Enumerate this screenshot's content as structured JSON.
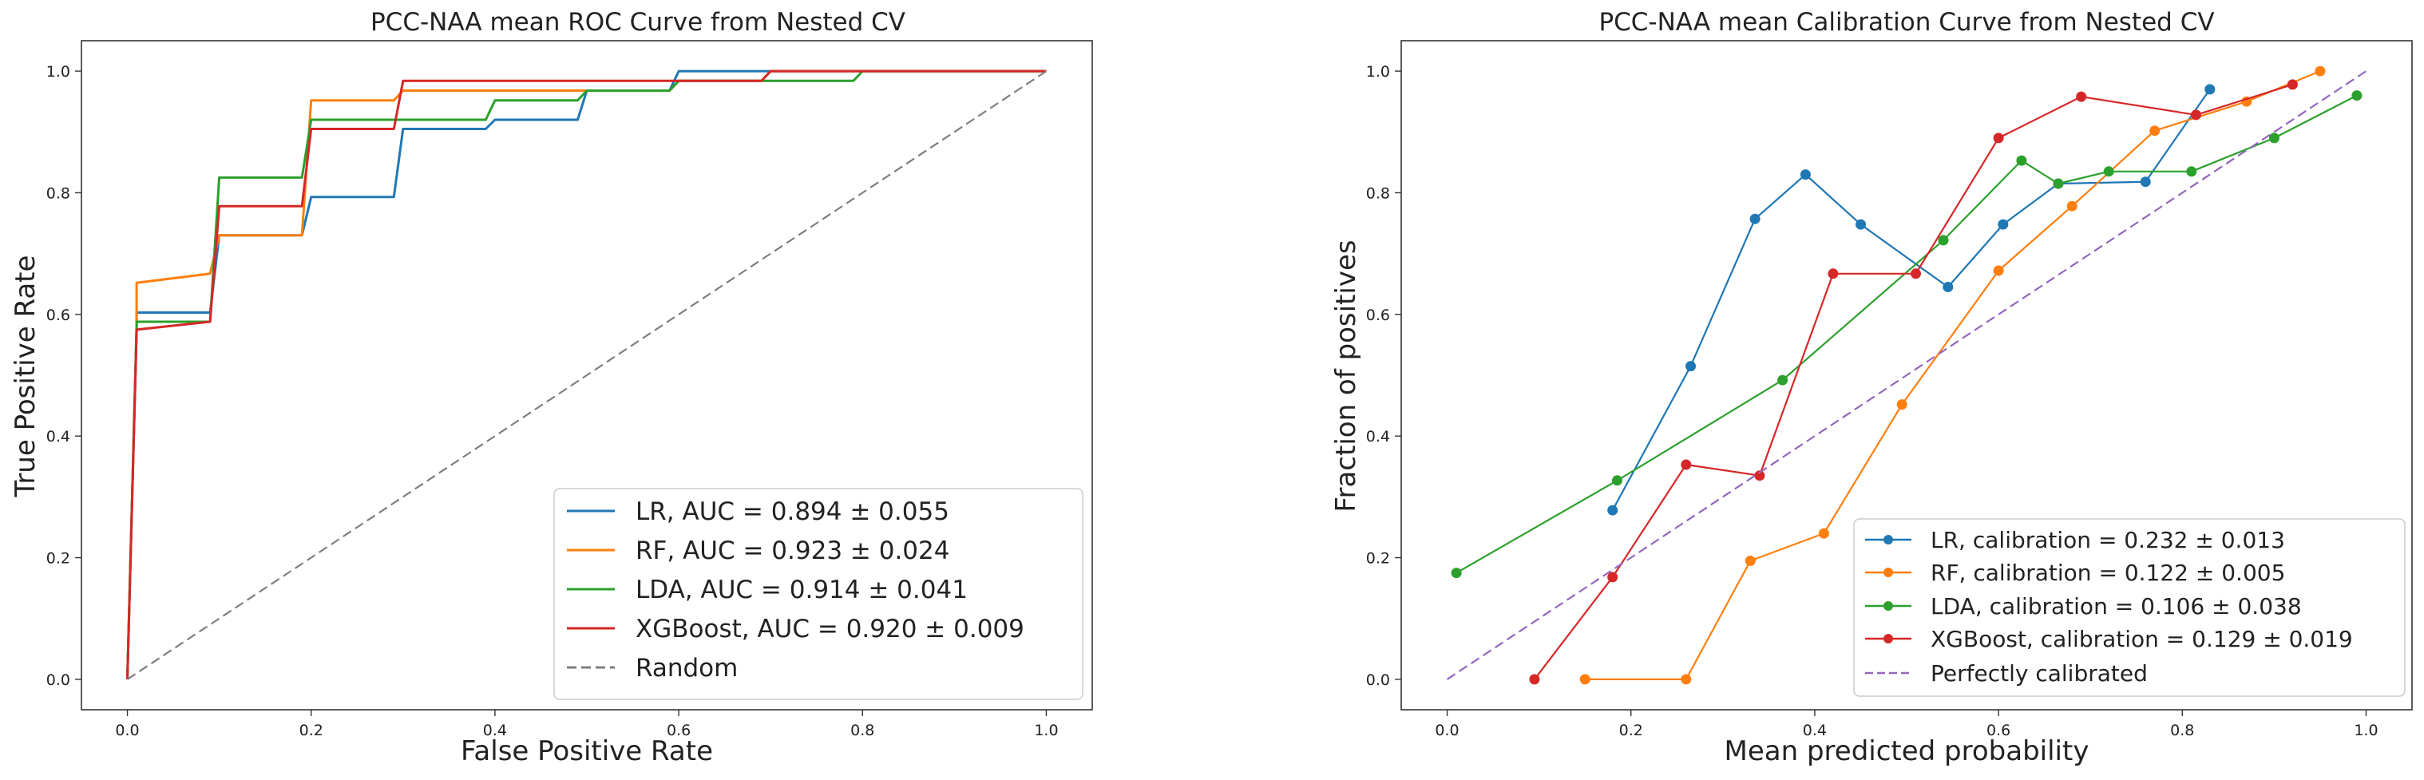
{
  "chart_data": [
    {
      "type": "line",
      "title": "PCC-NAA mean ROC Curve from Nested CV",
      "xlabel": "False Positive Rate",
      "ylabel": "True Positive Rate",
      "xlim": [
        -0.05,
        1.05
      ],
      "ylim": [
        -0.05,
        1.05
      ],
      "xticks": [
        0.0,
        0.2,
        0.4,
        0.6,
        0.8,
        1.0
      ],
      "yticks": [
        0.0,
        0.2,
        0.4,
        0.6,
        0.8,
        1.0
      ],
      "tick_labels": [
        "0.0",
        "0.2",
        "0.4",
        "0.6",
        "0.8",
        "1.0"
      ],
      "legend_position": "lower-right",
      "series": [
        {
          "name": "LR",
          "label": "LR, AUC = 0.894 ± 0.055",
          "color": "#1f77b4",
          "x": [
            0.0,
            0.01,
            0.01,
            0.09,
            0.1,
            0.19,
            0.2,
            0.29,
            0.3,
            0.39,
            0.4,
            0.49,
            0.5,
            0.59,
            0.6,
            0.69,
            0.7,
            1.0
          ],
          "y": [
            0.0,
            0.58,
            0.603,
            0.603,
            0.73,
            0.73,
            0.793,
            0.793,
            0.905,
            0.905,
            0.92,
            0.92,
            0.968,
            0.968,
            1.0,
            1.0,
            1.0,
            1.0
          ]
        },
        {
          "name": "RF",
          "label": "RF, AUC = 0.923 ± 0.024",
          "color": "#ff7f0e",
          "x": [
            0.0,
            0.01,
            0.01,
            0.09,
            0.1,
            0.19,
            0.2,
            0.29,
            0.3,
            0.49,
            0.5,
            0.59,
            0.6,
            0.69,
            0.7,
            1.0
          ],
          "y": [
            0.0,
            0.58,
            0.652,
            0.667,
            0.73,
            0.73,
            0.952,
            0.952,
            0.968,
            0.968,
            0.968,
            0.968,
            0.984,
            0.984,
            1.0,
            1.0
          ]
        },
        {
          "name": "LDA",
          "label": "LDA, AUC = 0.914 ± 0.041",
          "color": "#2ca02c",
          "x": [
            0.0,
            0.01,
            0.01,
            0.09,
            0.1,
            0.19,
            0.2,
            0.29,
            0.3,
            0.39,
            0.4,
            0.49,
            0.5,
            0.59,
            0.6,
            0.79,
            0.8,
            1.0
          ],
          "y": [
            0.0,
            0.58,
            0.588,
            0.588,
            0.825,
            0.825,
            0.92,
            0.92,
            0.92,
            0.92,
            0.952,
            0.952,
            0.968,
            0.968,
            0.984,
            0.984,
            1.0,
            1.0
          ]
        },
        {
          "name": "XGBoost",
          "label": "XGBoost, AUC = 0.920 ± 0.009",
          "color": "#d62728",
          "x": [
            0.0,
            0.01,
            0.01,
            0.09,
            0.1,
            0.19,
            0.2,
            0.29,
            0.3,
            0.59,
            0.6,
            0.69,
            0.7,
            1.0
          ],
          "y": [
            0.0,
            0.57,
            0.575,
            0.588,
            0.778,
            0.778,
            0.905,
            0.905,
            0.984,
            0.984,
            0.984,
            0.984,
            1.0,
            1.0
          ]
        },
        {
          "name": "Random",
          "label": "Random",
          "color": "#7f7f7f",
          "dashed": true,
          "x": [
            0.0,
            1.0
          ],
          "y": [
            0.0,
            1.0
          ]
        }
      ]
    },
    {
      "type": "line",
      "title": "PCC-NAA mean Calibration Curve from Nested CV",
      "xlabel": "Mean predicted probability",
      "ylabel": "Fraction of positives",
      "xlim": [
        -0.05,
        1.05
      ],
      "ylim": [
        -0.05,
        1.05
      ],
      "xticks": [
        0.0,
        0.2,
        0.4,
        0.6,
        0.8,
        1.0
      ],
      "yticks": [
        0.0,
        0.2,
        0.4,
        0.6,
        0.8,
        1.0
      ],
      "tick_labels": [
        "0.0",
        "0.2",
        "0.4",
        "0.6",
        "0.8",
        "1.0"
      ],
      "legend_position": "lower-right",
      "series": [
        {
          "name": "LR",
          "label": "LR, calibration = 0.232 ± 0.013",
          "color": "#1f77b4",
          "markers": true,
          "x": [
            0.18,
            0.265,
            0.335,
            0.39,
            0.45,
            0.545,
            0.605,
            0.665,
            0.76,
            0.83
          ],
          "y": [
            0.278,
            0.515,
            0.757,
            0.83,
            0.748,
            0.645,
            0.748,
            0.815,
            0.818,
            0.97
          ]
        },
        {
          "name": "RF",
          "label": "RF, calibration = 0.122 ± 0.005",
          "color": "#ff7f0e",
          "markers": true,
          "x": [
            0.15,
            0.26,
            0.33,
            0.41,
            0.495,
            0.6,
            0.68,
            0.77,
            0.87,
            0.95
          ],
          "y": [
            0.0,
            0.0,
            0.195,
            0.24,
            0.452,
            0.672,
            0.778,
            0.902,
            0.95,
            1.0
          ]
        },
        {
          "name": "LDA",
          "label": "LDA, calibration = 0.106 ± 0.038",
          "color": "#2ca02c",
          "markers": true,
          "x": [
            0.01,
            0.185,
            0.365,
            0.54,
            0.625,
            0.665,
            0.72,
            0.81,
            0.9,
            0.99
          ],
          "y": [
            0.175,
            0.327,
            0.492,
            0.722,
            0.853,
            0.815,
            0.835,
            0.835,
            0.89,
            0.96
          ]
        },
        {
          "name": "XGBoost",
          "label": "XGBoost, calibration = 0.129 ± 0.019",
          "color": "#d62728",
          "markers": true,
          "x": [
            0.095,
            0.18,
            0.26,
            0.34,
            0.42,
            0.51,
            0.6,
            0.69,
            0.815,
            0.92
          ],
          "y": [
            0.0,
            0.168,
            0.353,
            0.335,
            0.667,
            0.667,
            0.89,
            0.958,
            0.928,
            0.978
          ]
        },
        {
          "name": "Perfectly calibrated",
          "label": "Perfectly calibrated",
          "color": "#9467bd",
          "dashed": true,
          "x": [
            0.0,
            1.0
          ],
          "y": [
            0.0,
            1.0
          ]
        }
      ]
    }
  ]
}
